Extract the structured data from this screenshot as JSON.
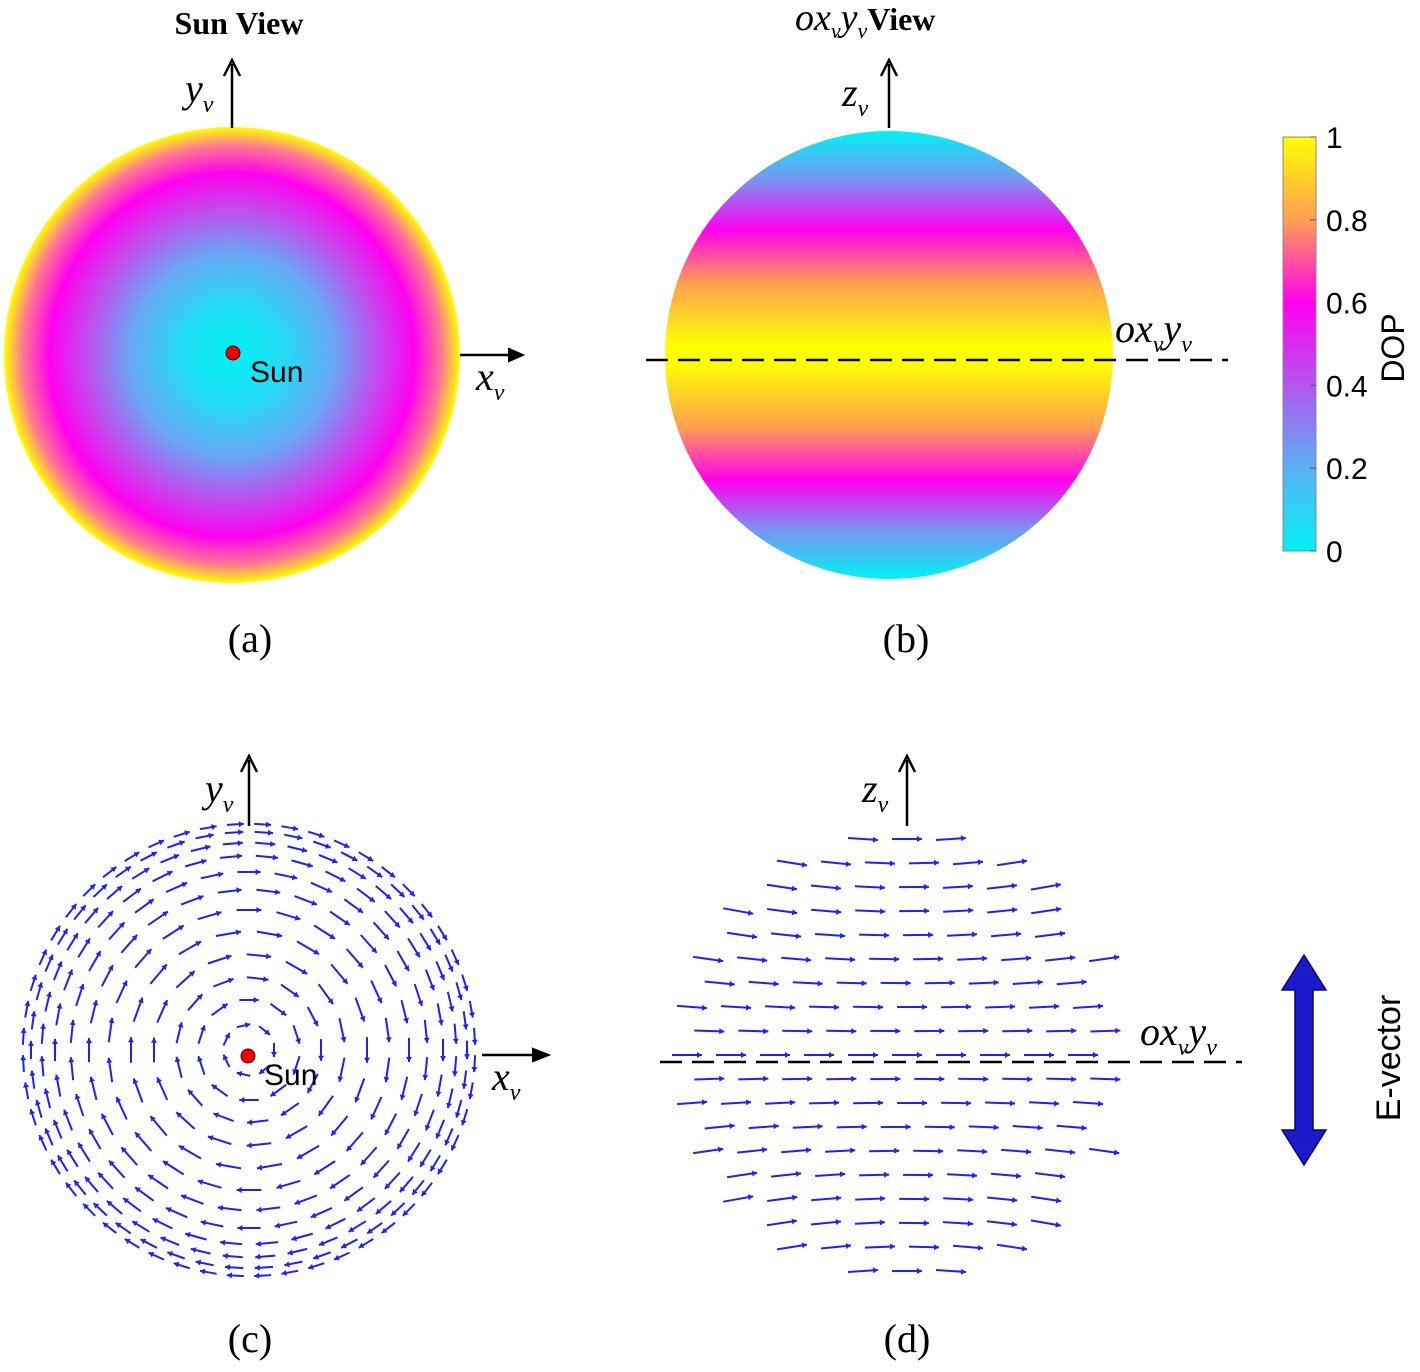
{
  "panels": {
    "a": {
      "title": "Sun View",
      "caption": "(a)",
      "sun_label": "Sun",
      "x_axis": {
        "base": "x",
        "sub": "v"
      },
      "y_axis": {
        "base": "y",
        "sub": "v"
      }
    },
    "b": {
      "title": {
        "o": "o",
        "x": "x",
        "xsub": "v",
        "y": "y",
        "ysub": "v",
        "word": "View"
      },
      "caption": "(b)",
      "z_axis": {
        "base": "z",
        "sub": "v"
      },
      "plane_label": {
        "o": "o",
        "x": "x",
        "xsub": "v",
        "y": "y",
        "ysub": "v"
      }
    },
    "c": {
      "caption": "(c)",
      "sun_label": "Sun",
      "x_axis": {
        "base": "x",
        "sub": "v"
      },
      "y_axis": {
        "base": "y",
        "sub": "v"
      }
    },
    "d": {
      "caption": "(d)",
      "z_axis": {
        "base": "z",
        "sub": "v"
      },
      "plane_label": {
        "o": "o",
        "x": "x",
        "xsub": "v",
        "y": "y",
        "ysub": "v"
      }
    }
  },
  "colorbar": {
    "label": "DOP",
    "ticks": [
      "0",
      "0.2",
      "0.4",
      "0.6",
      "0.8",
      "1"
    ],
    "tick_values": [
      0,
      0.2,
      0.4,
      0.6,
      0.8,
      1
    ],
    "range": [
      0,
      1
    ],
    "colors": [
      "#00f2f5",
      "#5ab0f5",
      "#b157ee",
      "#ff00f0",
      "#ffa050",
      "#ffff00"
    ]
  },
  "legend": {
    "label": "E-vector",
    "color": "#1a1acc"
  },
  "colors": {
    "vector": "#1f1fff",
    "sun": "#ee0000",
    "axis": "#000000"
  }
}
